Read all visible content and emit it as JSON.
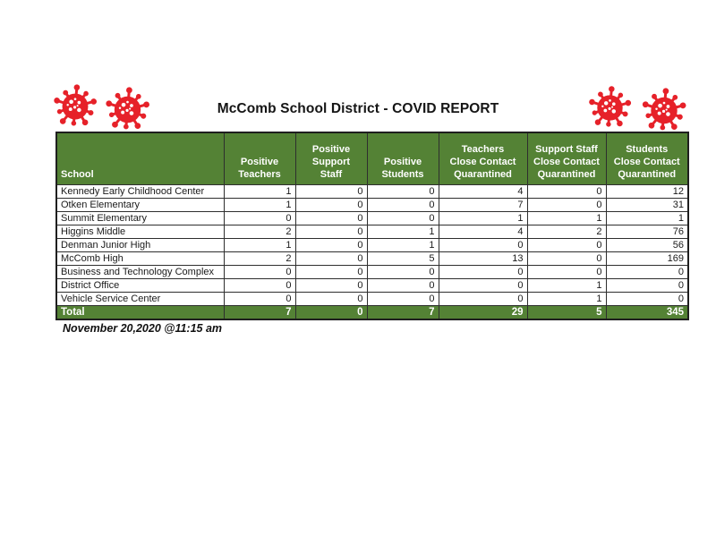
{
  "title": "McComb School District - COVID REPORT",
  "timestamp": "November 20,2020 @11:15 am",
  "colors": {
    "header_green": "#548235",
    "virus_red": "#e62129"
  },
  "icons": {
    "decorative": [
      "virus-icon",
      "virus-icon",
      "virus-icon",
      "virus-icon"
    ]
  },
  "table": {
    "columns": [
      "School",
      "Positive\nTeachers",
      "Positive\nSupport\nStaff",
      "Positive\nStudents",
      "Teachers\nClose Contact\nQuarantined",
      "Support Staff\nClose Contact\nQuarantined",
      "Students\nClose Contact\nQuarantined"
    ],
    "rows": [
      {
        "school": "Kennedy Early Childhood Center",
        "values": [
          1,
          0,
          0,
          4,
          0,
          12
        ]
      },
      {
        "school": "Otken Elementary",
        "values": [
          1,
          0,
          0,
          7,
          0,
          31
        ]
      },
      {
        "school": "Summit Elementary",
        "values": [
          0,
          0,
          0,
          1,
          1,
          1
        ]
      },
      {
        "school": "Higgins Middle",
        "values": [
          2,
          0,
          1,
          4,
          2,
          76
        ]
      },
      {
        "school": "Denman Junior High",
        "values": [
          1,
          0,
          1,
          0,
          0,
          56
        ]
      },
      {
        "school": "McComb High",
        "values": [
          2,
          0,
          5,
          13,
          0,
          169
        ]
      },
      {
        "school": "Business and Technology Complex",
        "values": [
          0,
          0,
          0,
          0,
          0,
          0
        ]
      },
      {
        "school": "District Office",
        "values": [
          0,
          0,
          0,
          0,
          1,
          0
        ]
      },
      {
        "school": "Vehicle Service Center",
        "values": [
          0,
          0,
          0,
          0,
          1,
          0
        ]
      }
    ],
    "total": {
      "label": "Total",
      "values": [
        7,
        0,
        7,
        29,
        5,
        345
      ]
    }
  }
}
